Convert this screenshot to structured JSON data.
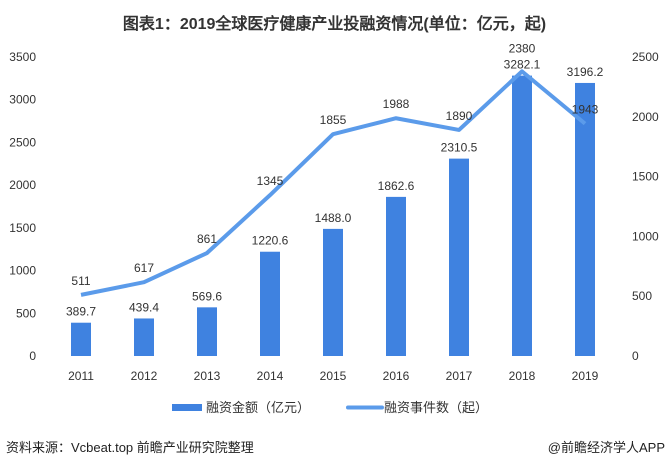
{
  "chart_data": {
    "type": "bar+line",
    "title": "图表1：2019全球医疗健康产业投融资情况(单位：亿元，起)",
    "categories": [
      "2011",
      "2012",
      "2013",
      "2014",
      "2015",
      "2016",
      "2017",
      "2018",
      "2019"
    ],
    "series": [
      {
        "name": "融资金额（亿元）",
        "type": "bar",
        "axis": "left",
        "color": "#3f82e0",
        "values": [
          389.7,
          439.4,
          569.6,
          1220.6,
          1488.0,
          1862.6,
          2310.5,
          3282.1,
          3196.2
        ],
        "labels": [
          "389.7",
          "439.4",
          "569.6",
          "1220.6",
          "1488.0",
          "1862.6",
          "2310.5",
          "3282.1",
          "3196.2"
        ]
      },
      {
        "name": "融资事件数（起）",
        "type": "line",
        "axis": "right",
        "color": "#5b9bea",
        "values": [
          511,
          617,
          861,
          1345,
          1855,
          1988,
          1890,
          2380,
          1943
        ]
      }
    ],
    "left_axis": {
      "ylim": [
        0,
        3500
      ],
      "ticks": [
        "0",
        "500",
        "1000",
        "1500",
        "2000",
        "2500",
        "3000",
        "3500"
      ]
    },
    "right_axis": {
      "ylim": [
        0,
        2500
      ],
      "ticks": [
        "0",
        "500",
        "1000",
        "1500",
        "2000",
        "2500"
      ]
    },
    "grid": false,
    "legend_placement": "bottom"
  },
  "footer": {
    "source": "资料来源：Vcbeat.top 前瞻产业研究院整理",
    "credit": "@前瞻经济学人APP"
  }
}
